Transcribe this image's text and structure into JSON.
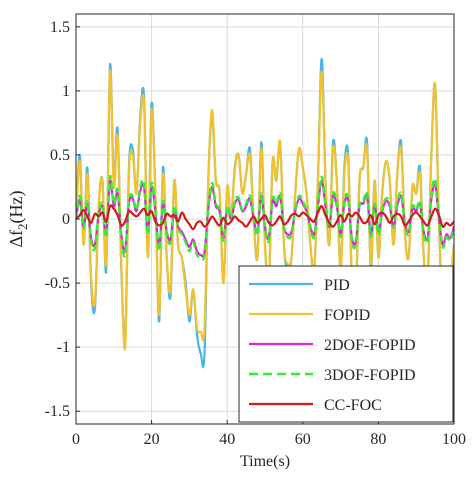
{
  "chart_data": {
    "type": "line",
    "title": "",
    "xlabel": "Time(s)",
    "ylabel_main": "Δf",
    "ylabel_sub": "2",
    "ylabel_unit": "(Hz)",
    "xlim": [
      0,
      100
    ],
    "ylim": [
      -1.6,
      1.6
    ],
    "x_ticks": [
      0,
      20,
      40,
      60,
      80,
      100
    ],
    "x_tick_labels": [
      "0",
      "20",
      "40",
      "60",
      "80",
      "100"
    ],
    "y_ticks": [
      -1.5,
      -1,
      -0.5,
      0,
      0.5,
      1,
      1.5
    ],
    "y_tick_labels": [
      "-1.5",
      "-1",
      "-0.5",
      "0",
      "0.5",
      "1",
      "1.5"
    ],
    "grid": true,
    "legend_position": "bottom-right",
    "x": [
      0,
      1,
      2,
      3,
      4,
      5,
      6,
      7,
      8,
      9,
      10,
      11,
      12,
      13,
      14,
      15,
      16,
      17,
      18,
      19,
      20,
      21,
      22,
      23,
      24,
      25,
      26,
      27,
      28,
      29,
      30,
      31,
      32,
      33,
      34,
      35,
      36,
      37,
      38,
      39,
      40,
      41,
      42,
      43,
      44,
      45,
      46,
      47,
      48,
      49,
      50,
      51,
      52,
      53,
      54,
      55,
      56,
      57,
      58,
      59,
      60,
      61,
      62,
      63,
      64,
      65,
      66,
      67,
      68,
      69,
      70,
      71,
      72,
      73,
      74,
      75,
      76,
      77,
      78,
      79,
      80,
      81,
      82,
      83,
      84,
      85,
      86,
      87,
      88,
      89,
      90,
      91,
      92,
      93,
      94,
      95,
      96,
      97,
      98,
      99,
      100
    ],
    "series": [
      {
        "name": "PID",
        "color": "#4db3e6",
        "dash": "solid",
        "width": 2.2,
        "values": [
          0.0,
          0.5,
          -0.2,
          0.4,
          -0.5,
          -0.7,
          0.1,
          0.3,
          -0.4,
          1.2,
          0.3,
          0.7,
          -0.4,
          -0.95,
          0.4,
          0.55,
          0.2,
          0.8,
          0.95,
          -0.3,
          0.9,
          0.2,
          -0.8,
          0.4,
          -0.3,
          -0.6,
          0.3,
          -0.2,
          -0.3,
          -0.5,
          -0.8,
          -0.55,
          -0.9,
          -1.05,
          -1.05,
          0.3,
          0.8,
          0.3,
          0.2,
          -0.5,
          0.25,
          0.0,
          0.4,
          0.5,
          0.2,
          0.35,
          0.55,
          0.0,
          -0.3,
          0.6,
          -0.2,
          -0.5,
          0.45,
          0.3,
          0.6,
          -0.2,
          -0.4,
          -0.3,
          0.2,
          0.55,
          0.4,
          0.2,
          -0.2,
          -0.4,
          0.3,
          1.25,
          0.3,
          -0.2,
          0.6,
          0.3,
          -0.4,
          0.4,
          0.5,
          -0.5,
          -0.6,
          0.3,
          0.4,
          0.6,
          -0.4,
          0.3,
          -0.3,
          0.2,
          0.45,
          0.3,
          -0.2,
          0.35,
          0.6,
          -0.1,
          -0.3,
          0.25,
          0.2,
          0.4,
          -0.3,
          -0.5,
          0.5,
          1.05,
          0.0,
          -0.7,
          -0.4,
          -0.5,
          -0.2
        ]
      },
      {
        "name": "FOPID",
        "color": "#f2c12e",
        "dash": "solid",
        "width": 2.2,
        "values": [
          0.0,
          0.45,
          -0.2,
          0.35,
          -0.45,
          -0.65,
          0.1,
          0.3,
          -0.35,
          1.15,
          0.25,
          0.65,
          -0.35,
          -1.0,
          0.35,
          0.5,
          0.2,
          0.75,
          0.9,
          -0.3,
          0.85,
          0.2,
          -0.75,
          0.35,
          -0.3,
          -0.55,
          0.3,
          -0.2,
          -0.3,
          -0.55,
          -0.75,
          -0.55,
          -0.85,
          -0.88,
          -0.85,
          0.3,
          0.85,
          0.3,
          0.2,
          -0.5,
          0.25,
          0.0,
          0.38,
          0.5,
          0.2,
          0.35,
          0.5,
          0.0,
          -0.3,
          0.55,
          -0.2,
          -0.5,
          0.45,
          0.3,
          0.6,
          -0.2,
          -0.35,
          -0.3,
          0.2,
          0.55,
          0.4,
          0.2,
          -0.2,
          -0.4,
          0.3,
          1.15,
          0.3,
          -0.2,
          0.55,
          0.3,
          -0.4,
          0.35,
          0.45,
          -0.45,
          -0.55,
          0.3,
          0.4,
          0.55,
          -0.35,
          0.3,
          -0.3,
          0.2,
          0.45,
          0.3,
          -0.2,
          0.35,
          0.55,
          -0.1,
          -0.3,
          0.25,
          0.2,
          0.35,
          -0.3,
          -0.45,
          0.5,
          1.05,
          0.0,
          -0.65,
          -0.4,
          -0.45,
          -0.2
        ]
      },
      {
        "name": "2DOF-FOPID",
        "color": "#dd22dd",
        "dash": "solid",
        "width": 2.2,
        "values": [
          0.0,
          0.15,
          -0.06,
          0.12,
          -0.15,
          -0.2,
          0.03,
          0.1,
          -0.12,
          0.3,
          0.1,
          0.2,
          -0.12,
          -0.25,
          0.12,
          0.16,
          0.06,
          0.22,
          0.25,
          -0.1,
          0.25,
          0.06,
          -0.22,
          0.12,
          -0.1,
          -0.16,
          0.08,
          -0.06,
          -0.1,
          -0.16,
          -0.22,
          -0.16,
          -0.25,
          -0.28,
          -0.26,
          0.08,
          0.25,
          0.1,
          0.06,
          -0.15,
          0.08,
          0.0,
          0.12,
          0.15,
          0.06,
          0.1,
          0.16,
          0.0,
          -0.1,
          0.18,
          -0.06,
          -0.15,
          0.14,
          0.1,
          0.18,
          -0.06,
          -0.12,
          -0.1,
          0.06,
          0.16,
          0.12,
          0.06,
          -0.06,
          -0.12,
          0.1,
          0.3,
          0.1,
          -0.06,
          0.18,
          0.1,
          -0.12,
          0.12,
          0.15,
          -0.15,
          -0.18,
          0.1,
          0.12,
          0.18,
          -0.12,
          0.1,
          -0.1,
          0.06,
          0.14,
          0.1,
          -0.06,
          0.1,
          0.18,
          -0.03,
          -0.1,
          0.08,
          0.06,
          0.12,
          -0.1,
          -0.15,
          0.15,
          0.28,
          0.0,
          -0.2,
          -0.12,
          -0.15,
          -0.06
        ]
      },
      {
        "name": "3DOF-FOPID",
        "color": "#33ee33",
        "dash": "dashed",
        "width": 2.4,
        "values": [
          0.0,
          0.18,
          -0.07,
          0.14,
          -0.17,
          -0.23,
          0.04,
          0.12,
          -0.14,
          0.33,
          0.12,
          0.23,
          -0.14,
          -0.28,
          0.14,
          0.18,
          0.07,
          0.25,
          0.28,
          -0.12,
          0.28,
          0.07,
          -0.25,
          0.14,
          -0.12,
          -0.18,
          0.1,
          -0.07,
          -0.12,
          -0.18,
          -0.25,
          -0.18,
          -0.28,
          -0.3,
          -0.28,
          0.1,
          0.28,
          0.12,
          0.07,
          -0.17,
          0.1,
          0.0,
          0.14,
          0.17,
          0.07,
          0.12,
          0.18,
          0.0,
          -0.12,
          0.2,
          -0.07,
          -0.17,
          0.16,
          0.12,
          0.2,
          -0.07,
          -0.14,
          -0.12,
          0.07,
          0.18,
          0.14,
          0.07,
          -0.07,
          -0.14,
          0.12,
          0.33,
          0.12,
          -0.07,
          0.2,
          0.12,
          -0.14,
          0.14,
          0.17,
          -0.17,
          -0.2,
          0.12,
          0.14,
          0.2,
          -0.14,
          0.12,
          -0.12,
          0.07,
          0.16,
          0.12,
          -0.07,
          0.12,
          0.2,
          -0.04,
          -0.12,
          0.1,
          0.07,
          0.14,
          -0.12,
          -0.17,
          0.17,
          0.31,
          0.0,
          -0.22,
          -0.14,
          -0.17,
          -0.07
        ]
      },
      {
        "name": "CC-FOC",
        "color": "#d11a1a",
        "dash": "solid",
        "width": 2.2,
        "values": [
          0.0,
          0.03,
          0.07,
          0.02,
          -0.03,
          0.04,
          0.02,
          0.05,
          -0.02,
          0.1,
          0.08,
          0.03,
          -0.05,
          -0.02,
          0.06,
          0.04,
          0.02,
          0.05,
          0.08,
          0.03,
          0.06,
          -0.02,
          -0.05,
          -0.03,
          0.04,
          0.02,
          0.03,
          -0.02,
          0.05,
          0.0,
          -0.04,
          -0.08,
          -0.03,
          -0.02,
          -0.06,
          -0.03,
          0.02,
          -0.02,
          -0.05,
          0.01,
          -0.04,
          -0.02,
          0.02,
          -0.01,
          -0.03,
          -0.06,
          -0.02,
          0.02,
          -0.03,
          0.0,
          0.03,
          -0.03,
          -0.05,
          -0.02,
          0.02,
          -0.04,
          -0.02,
          0.03,
          0.04,
          0.02,
          0.05,
          0.03,
          0.0,
          -0.02,
          0.05,
          0.1,
          0.03,
          -0.03,
          -0.06,
          -0.02,
          0.03,
          -0.02,
          0.04,
          0.02,
          0.05,
          0.02,
          -0.03,
          -0.02,
          0.03,
          -0.04,
          0.03,
          0.05,
          0.02,
          -0.03,
          0.02,
          0.04,
          0.02,
          -0.05,
          -0.02,
          0.03,
          0.05,
          0.02,
          -0.02,
          -0.05,
          0.02,
          0.08,
          0.03,
          -0.06,
          -0.03,
          -0.05,
          -0.02
        ]
      }
    ]
  }
}
